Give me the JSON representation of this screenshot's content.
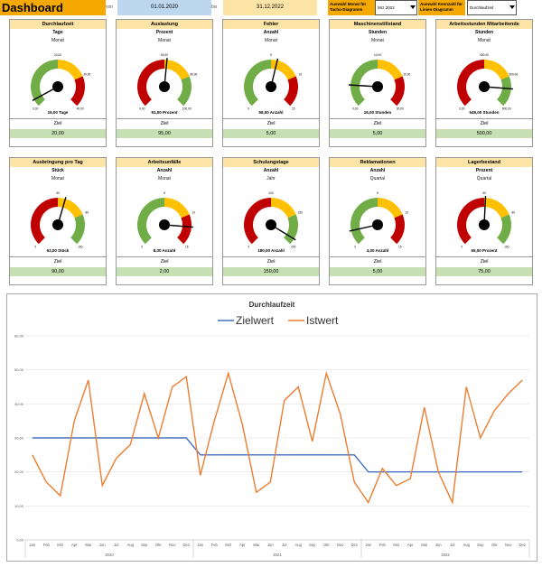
{
  "header": {
    "title": "Dashboard",
    "von_label": "von",
    "von_value": "01.01.2020",
    "bis_label": "bis",
    "bis_value": "31.12.2022",
    "select_month_label": "Auswahl Monat für Tacho-Diagramm",
    "select_month_value": "Mrz 2022",
    "select_kpi_label": "Auswahl Kennzahl für Linien-Diagramm",
    "select_kpi_value": "Durchlaufzeit"
  },
  "colors": {
    "red": "#c00000",
    "yellow": "#ffc000",
    "green": "#70ad47",
    "header_orange": "#f5a800",
    "card_header": "#fce4a6",
    "goal_green": "#c6e0b4",
    "date_blue": "#bdd7ee"
  },
  "cards": [
    {
      "title": "Durchlaufzeit",
      "unit": "Tage",
      "period": "Monat",
      "scale": [
        "0,00",
        "20,00",
        "30,00",
        "40,00"
      ],
      "zones": [
        "green",
        "yellow",
        "red"
      ],
      "needle": 0.06,
      "value_label": "16,00 Tage",
      "goal_label": "Ziel",
      "goal_value": "20,00"
    },
    {
      "title": "Auslastung",
      "unit": "Prozent",
      "period": "Monat",
      "scale": [
        "0,00",
        "60,00",
        "80,00",
        "100,00"
      ],
      "zones": [
        "red",
        "yellow",
        "green"
      ],
      "needle": 0.52,
      "value_label": "91,00 Prozent",
      "goal_label": "Ziel",
      "goal_value": "95,00"
    },
    {
      "title": "Fehler",
      "unit": "Anzahl",
      "period": "Monat",
      "scale": [
        "0",
        "5",
        "10",
        "15"
      ],
      "zones": [
        "green",
        "yellow",
        "red"
      ],
      "needle": 0.55,
      "value_label": "58,00 Anzahl",
      "goal_label": "Ziel",
      "goal_value": "5,00"
    },
    {
      "title": "Maschinenstillstand",
      "unit": "Stunden",
      "period": "Monat",
      "scale": [
        "0,00",
        "10,00",
        "20,00",
        "30,00"
      ],
      "zones": [
        "green",
        "yellow",
        "red"
      ],
      "needle": 0.18,
      "value_label": "16,00 Stunden",
      "goal_label": "Ziel",
      "goal_value": "5,00"
    },
    {
      "title": "Arbeitsstunden Mitarbeitende",
      "unit": "Stunden",
      "period": "Monat",
      "scale": [
        "0,00",
        "400,00",
        "500,00",
        "600,00"
      ],
      "zones": [
        "red",
        "yellow",
        "green"
      ],
      "needle": 0.85,
      "value_label": "549,00 Stunden",
      "goal_label": "Ziel",
      "goal_value": "500,00"
    },
    {
      "title": "Ausbringung pro Tag",
      "unit": "Stück",
      "period": "Monat",
      "scale": [
        "0",
        "50",
        "80",
        "100"
      ],
      "zones": [
        "red",
        "yellow",
        "green"
      ],
      "needle": 0.56,
      "value_label": "63,00 Stück",
      "goal_label": "Ziel",
      "goal_value": "90,00"
    },
    {
      "title": "Arbeitsunfälle",
      "unit": "Anzahl",
      "period": "Monat",
      "scale": [
        "0",
        "5",
        "10",
        "15"
      ],
      "zones": [
        "green",
        "yellow",
        "red"
      ],
      "needle": 0.85,
      "value_label": "8,00 Anzahl",
      "goal_label": "Ziel",
      "goal_value": "2,00"
    },
    {
      "title": "Schulungstage",
      "unit": "Anzahl",
      "period": "Jahr",
      "scale": [
        "0",
        "100",
        "150",
        "200"
      ],
      "zones": [
        "red",
        "yellow",
        "green"
      ],
      "needle": 0.95,
      "value_label": "180,00 Anzahl",
      "goal_label": "Ziel",
      "goal_value": "150,00"
    },
    {
      "title": "Reklamationen",
      "unit": "Anzahl",
      "period": "Quartal",
      "scale": [
        "0",
        "5",
        "10",
        "15"
      ],
      "zones": [
        "green",
        "yellow",
        "red"
      ],
      "needle": 0.12,
      "value_label": "4,00 Anzahl",
      "goal_label": "Ziel",
      "goal_value": "5,00"
    },
    {
      "title": "Lagerbestand",
      "unit": "Prozent",
      "period": "Quartal",
      "scale": [
        "0",
        "50",
        "80",
        "100"
      ],
      "zones": [
        "red",
        "yellow",
        "green"
      ],
      "needle": 0.51,
      "value_label": "65,00 Prozent",
      "goal_label": "Ziel",
      "goal_value": "75,00"
    }
  ],
  "chart_data": {
    "type": "line",
    "title": "Durchlaufzeit",
    "legend_position": "top",
    "ylim": [
      0,
      60
    ],
    "yticks": [
      "0,00",
      "10,00",
      "20,00",
      "30,00",
      "40,00",
      "50,00",
      "60,00"
    ],
    "categories": [
      "Jan",
      "Feb",
      "Mrz",
      "Apr",
      "Mai",
      "Jun",
      "Jul",
      "Aug",
      "Sep",
      "Okt",
      "Nov",
      "Dez",
      "Jan",
      "Feb",
      "Mrz",
      "Apr",
      "Mai",
      "Jun",
      "Jul",
      "Aug",
      "Sep",
      "Okt",
      "Nov",
      "Dez",
      "Jan",
      "Feb",
      "Mrz",
      "Apr",
      "Mai",
      "Jun",
      "Jul",
      "Aug",
      "Sep",
      "Okt",
      "Nov",
      "Dez"
    ],
    "year_labels": [
      "2020",
      "2021",
      "2022"
    ],
    "grid": true,
    "series": [
      {
        "name": "Zielwert",
        "color": "#4472c4",
        "values": [
          30,
          30,
          30,
          30,
          30,
          30,
          30,
          30,
          30,
          30,
          30,
          30,
          25,
          25,
          25,
          25,
          25,
          25,
          25,
          25,
          25,
          25,
          25,
          25,
          20,
          20,
          20,
          20,
          20,
          20,
          20,
          20,
          20,
          20,
          20,
          20
        ]
      },
      {
        "name": "Istwert",
        "color": "#ed7d31",
        "values": [
          25,
          17,
          13,
          35,
          47,
          16,
          24,
          28,
          43,
          30,
          45,
          48,
          19,
          35,
          49,
          34,
          14,
          17,
          41,
          45,
          29,
          49,
          37,
          17,
          11,
          21,
          16,
          18,
          39,
          20,
          11,
          45,
          30,
          38,
          43,
          47
        ]
      }
    ]
  }
}
